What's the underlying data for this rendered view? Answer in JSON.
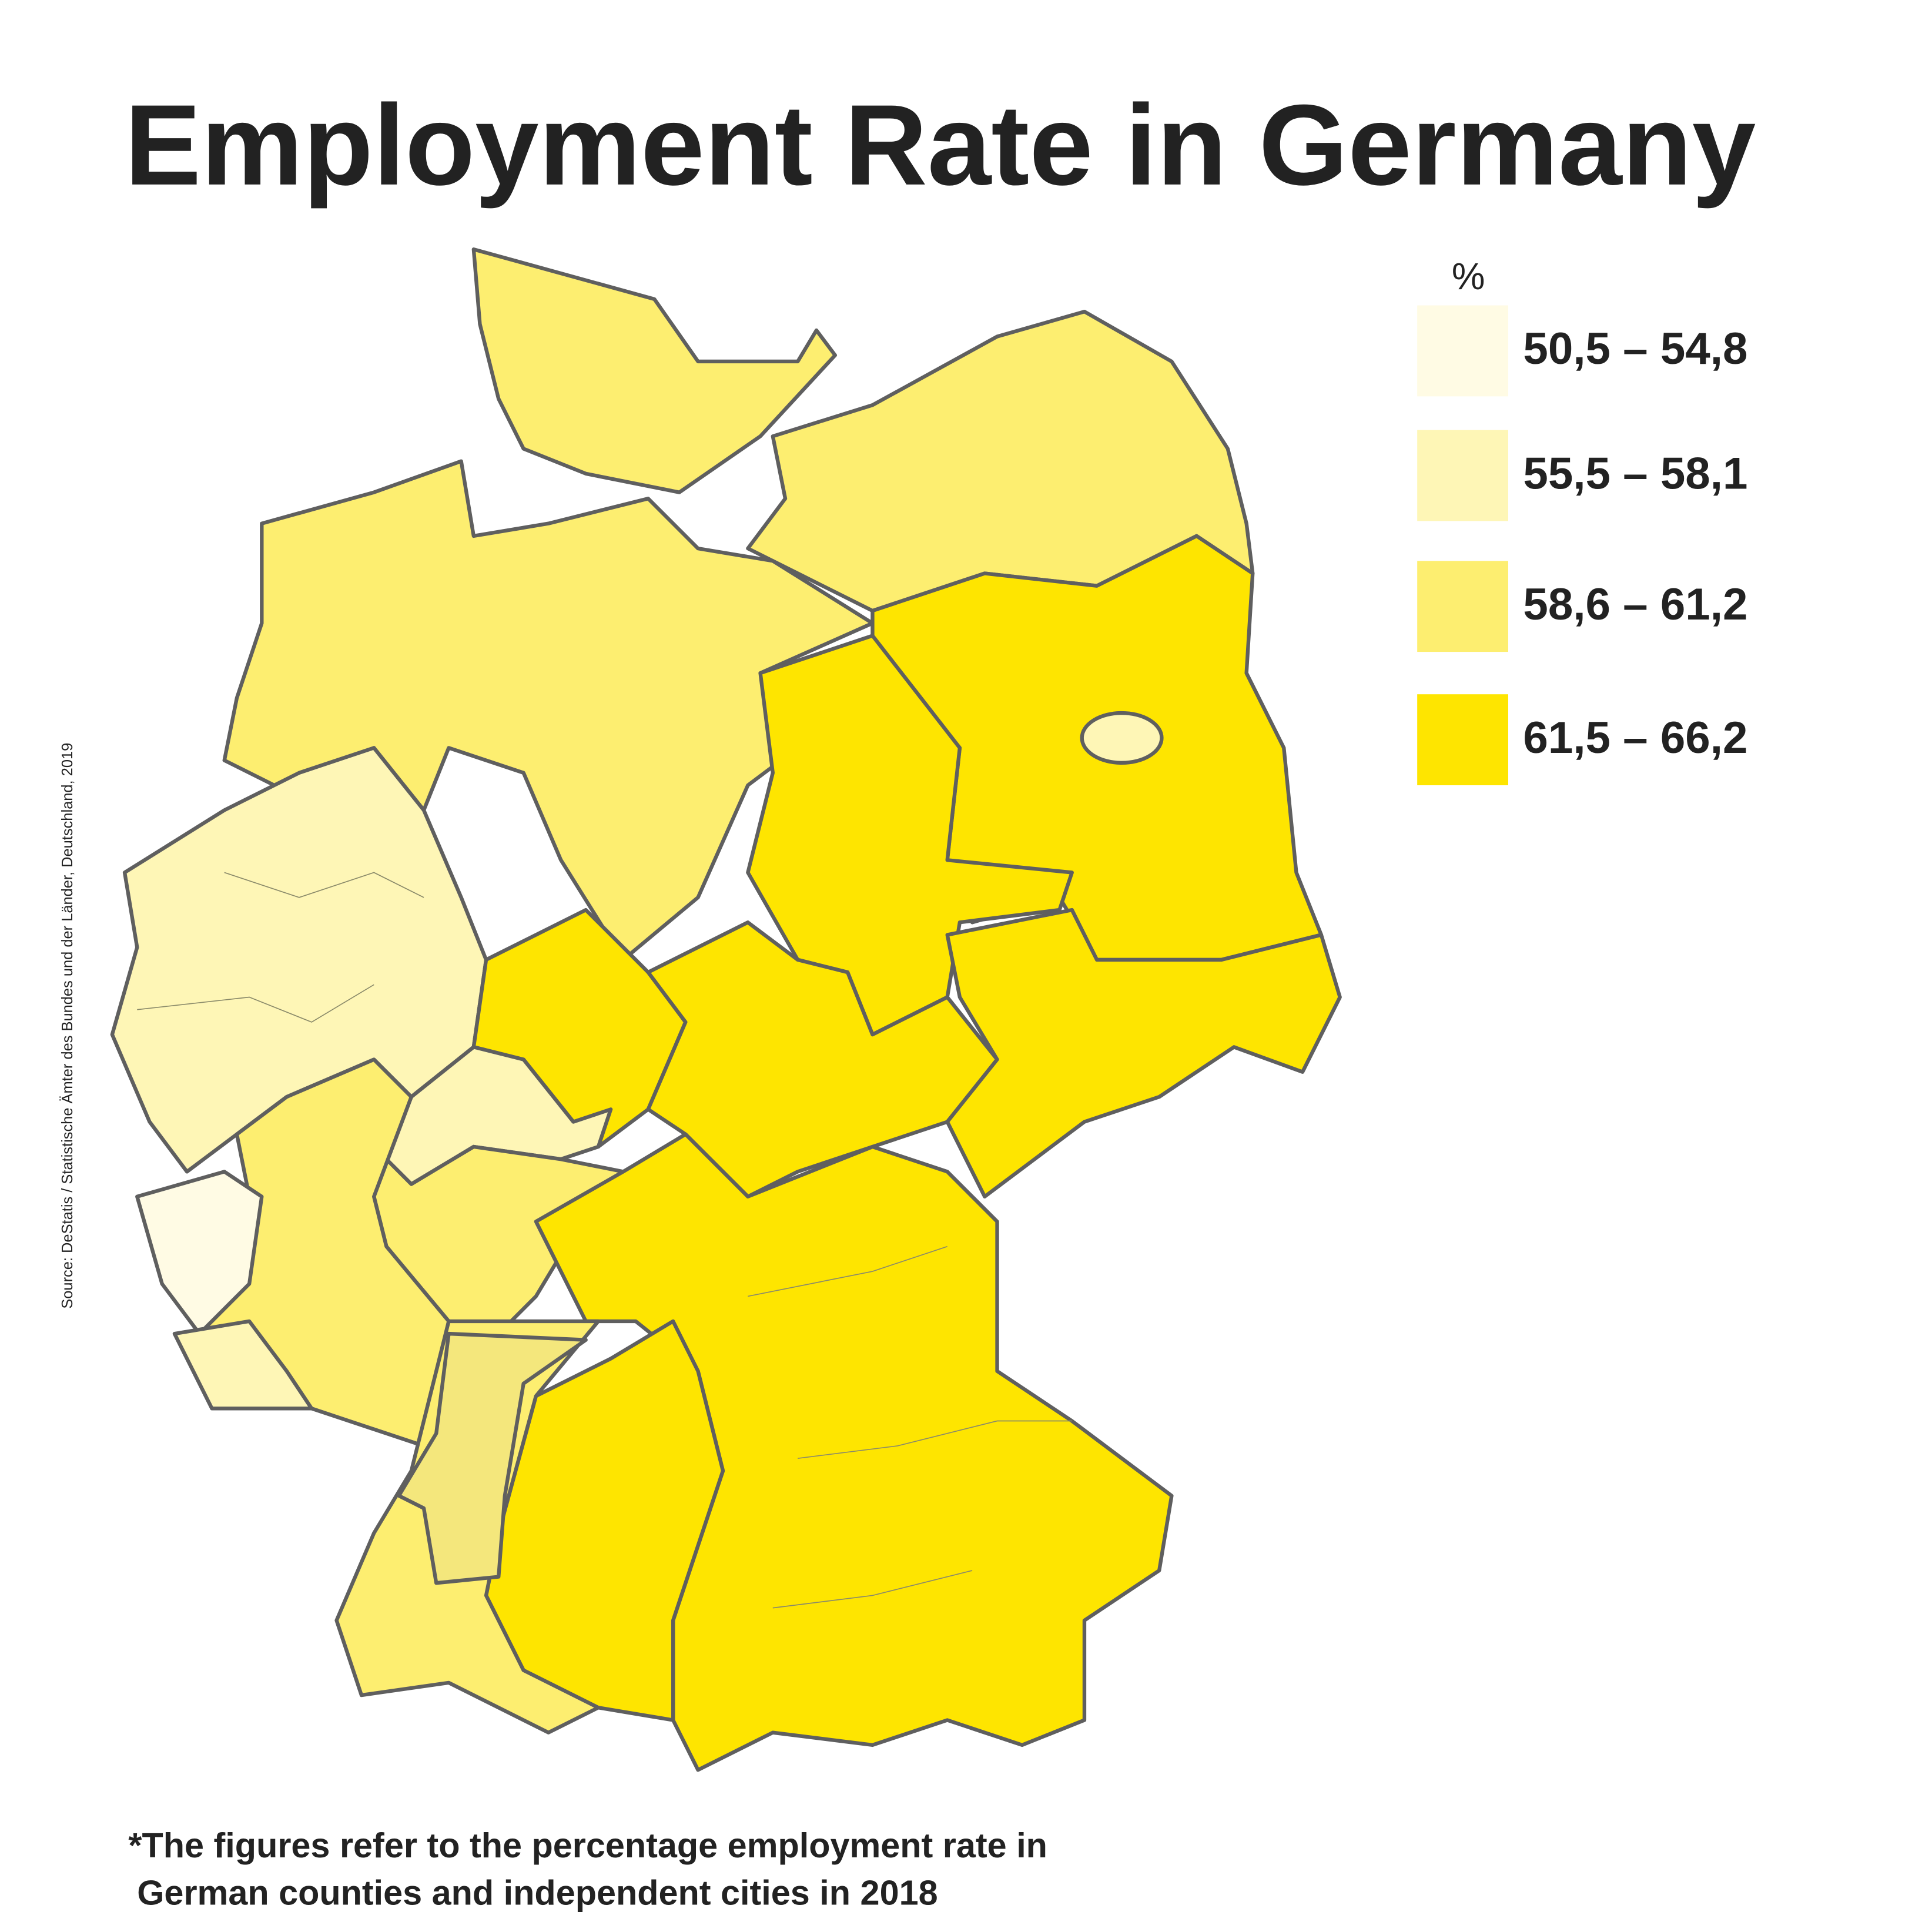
{
  "title": "Employment Rate in Germany",
  "legend": {
    "title": "%",
    "items": [
      {
        "label": "50,5 – 54,8",
        "color": "#fffbe4"
      },
      {
        "label": "55,5 – 58,1",
        "color": "#fef6b6"
      },
      {
        "label": "58,6 – 61,2",
        "color": "#fdee70"
      },
      {
        "label": "61,5 – 66,2",
        "color": "#fee500"
      }
    ]
  },
  "source": "Source: DeStatis / Statistische Ämter des Bundes und der Länder, Deutschland, 2019",
  "footnote": [
    "*The figures refer to the percentage employment rate in",
    "German counties and independent cities in 2018"
  ]
}
